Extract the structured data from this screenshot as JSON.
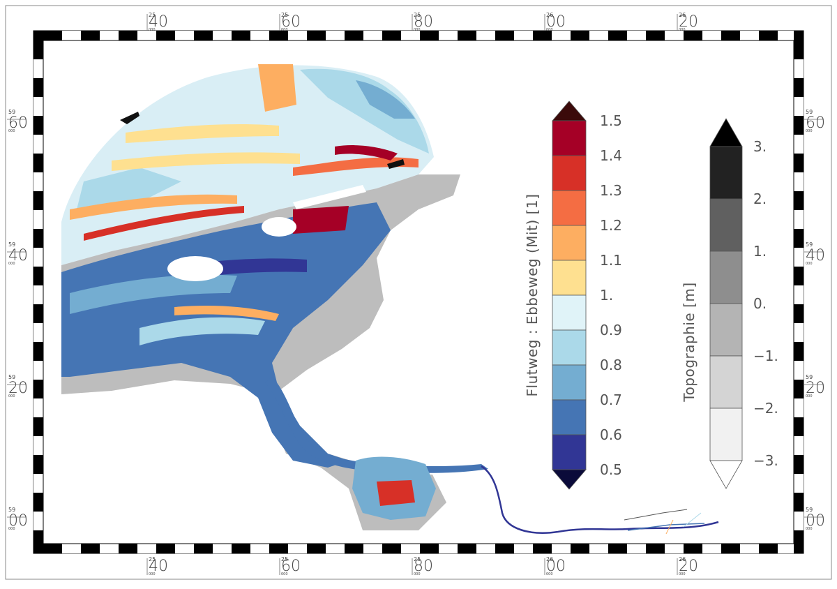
{
  "map": {
    "x_ticks": [
      {
        "sup": "25",
        "main": "40"
      },
      {
        "sup": "25",
        "main": "60"
      },
      {
        "sup": "25",
        "main": "80"
      },
      {
        "sup": "26",
        "main": "00"
      },
      {
        "sup": "26",
        "main": "20"
      }
    ],
    "y_ticks": [
      {
        "sup": "59",
        "main": "60"
      },
      {
        "sup": "59",
        "main": "40"
      },
      {
        "sup": "59",
        "main": "20"
      },
      {
        "sup": "59",
        "main": "00"
      }
    ],
    "tick_sub": "000"
  },
  "colorbar_ratio": {
    "title": "Flutweg : Ebbeweg (Mit) [1]",
    "labels": [
      "1.5",
      "1.4",
      "1.3",
      "1.2",
      "1.1",
      "1.",
      "0.9",
      "0.8",
      "0.7",
      "0.6",
      "0.5"
    ],
    "colors": [
      "#a50026",
      "#d73027",
      "#f46d43",
      "#fdae61",
      "#fee090",
      "#e0f3f8",
      "#abd9e9",
      "#74add1",
      "#4575b4",
      "#313695"
    ],
    "over_color": "#3b0a0a",
    "under_color": "#0b0b3a"
  },
  "colorbar_topo": {
    "title": "Topographie [m]",
    "labels": [
      "3.",
      "2.",
      "1.",
      "0.",
      "−1.",
      "−2.",
      "−3."
    ],
    "colors": [
      "#222222",
      "#606060",
      "#8e8e8e",
      "#b4b4b4",
      "#d4d4d4",
      "#f1f1f1"
    ],
    "over_color": "#000000",
    "under_color": "#ffffff"
  }
}
